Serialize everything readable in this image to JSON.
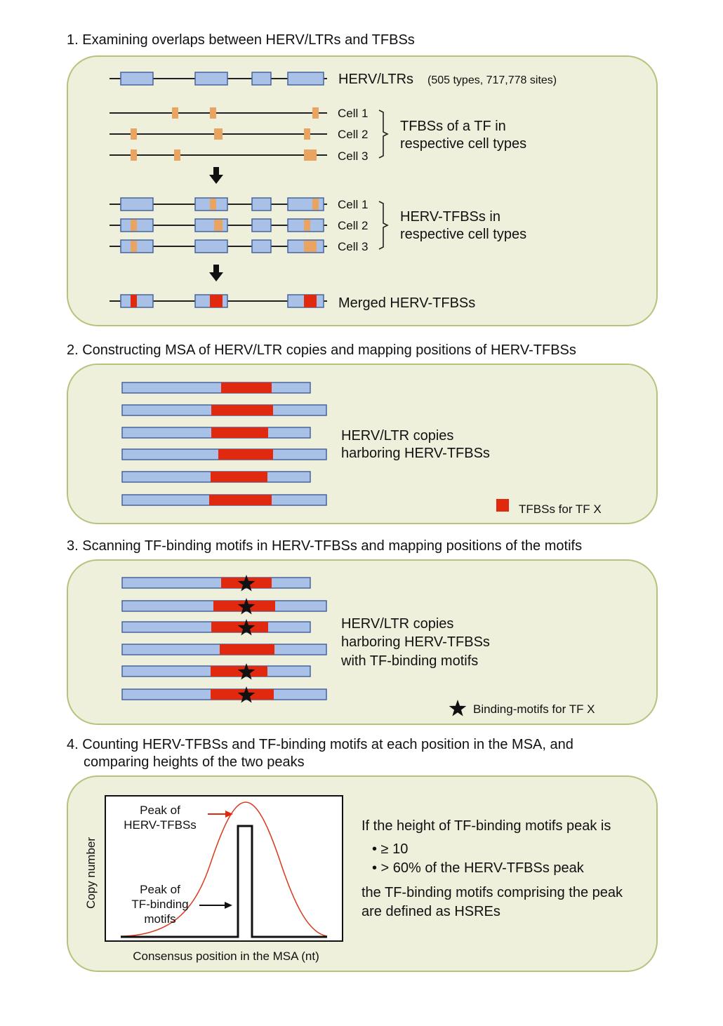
{
  "step1": {
    "title": "1. Examining overlaps between HERV/LTRs and TFBSs",
    "herv_label": "HERV/LTRs",
    "herv_detail": "(505 types, 717,778 sites)",
    "cells": [
      "Cell 1",
      "Cell 2",
      "Cell 3"
    ],
    "tfbs_label_1": "TFBSs of a TF in",
    "tfbs_label_2": "respective cell types",
    "herv_tfbs_label_1": "HERV-TFBSs in",
    "herv_tfbs_label_2": "respective cell types",
    "merged_label": "Merged HERV-TFBSs"
  },
  "step2": {
    "title": "2. Constructing MSA of HERV/LTR copies and mapping positions of HERV-TFBSs",
    "label_1": "HERV/LTR copies",
    "label_2": "harboring HERV-TFBSs",
    "legend": "TFBSs for TF X"
  },
  "step3": {
    "title": "3. Scanning TF-binding motifs in HERV-TFBSs and mapping positions of the motifs",
    "label_1": "HERV/LTR copies",
    "label_2": "harboring HERV-TFBSs",
    "label_3": "with TF-binding motifs",
    "legend": "Binding-motifs for TF X"
  },
  "step4": {
    "title_1": "4. Counting HERV-TFBSs and TF-binding motifs at each position in the MSA, and",
    "title_2": "comparing heights of the two peaks",
    "peak_tfbs_1": "Peak of",
    "peak_tfbs_2": "HERV-TFBSs",
    "peak_motif_1": "Peak of",
    "peak_motif_2": "TF-binding",
    "peak_motif_3": "motifs",
    "ylabel": "Copy number",
    "xlabel": "Consensus position  in the MSA (nt)",
    "rule_intro": "If the height of TF-binding motifs peak is",
    "bullets": [
      "• ≥ 10",
      "• > 60% of the HERV-TFBSs peak"
    ],
    "rule_end_1": "the TF-binding motifs comprising the peak",
    "rule_end_2": "are defined as HSREs"
  },
  "colors": {
    "panel_fill": "#eef0dc",
    "panel_border": "#b7c27c",
    "herv_box": "#a9c0e7",
    "herv_border": "#46649e",
    "tfbs_orange": "#eaa462",
    "tfbs_red": "#e0290f",
    "peak_arrow": "#e0290f"
  }
}
